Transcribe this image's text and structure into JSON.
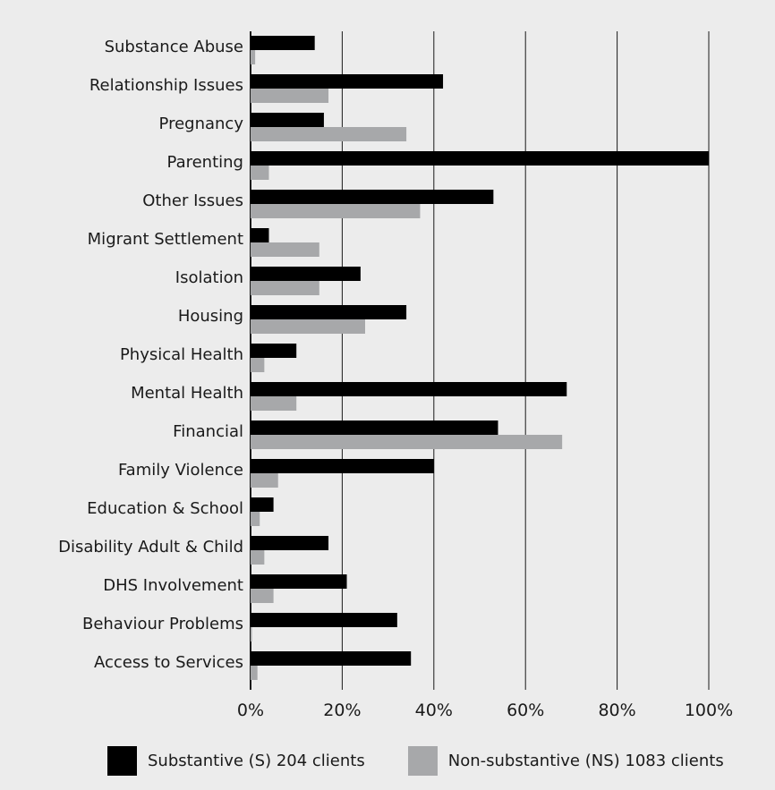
{
  "chart_data": {
    "type": "bar",
    "orientation": "horizontal",
    "categories": [
      "Substance Abuse",
      "Relationship Issues",
      "Pregnancy",
      "Parenting",
      "Other Issues",
      "Migrant Settlement",
      "Isolation",
      "Housing",
      "Physical Health",
      "Mental Health",
      "Financial",
      "Family Violence",
      "Education & School",
      "Disability Adult & Child",
      "DHS Involvement",
      "Behaviour Problems",
      "Access to Services"
    ],
    "series": [
      {
        "name": "Substantive (S) 204 clients",
        "color": "#000000",
        "values": [
          14,
          42,
          16,
          100,
          53,
          4,
          24,
          34,
          10,
          69,
          54,
          40,
          5,
          17,
          21,
          32,
          35
        ]
      },
      {
        "name": "Non-substantive (NS) 1083 clients",
        "color": "#a7a8aa",
        "values": [
          1,
          17,
          34,
          4,
          37,
          15,
          15,
          25,
          3,
          10,
          68,
          6,
          2,
          3,
          5,
          0.3,
          1.5
        ]
      }
    ],
    "xlim": [
      0,
      100
    ],
    "xticks": [
      "0%",
      "20%",
      "40%",
      "60%",
      "80%",
      "100%"
    ],
    "xlabel": "",
    "ylabel": "",
    "grid": "vertical",
    "legend_position": "bottom"
  }
}
